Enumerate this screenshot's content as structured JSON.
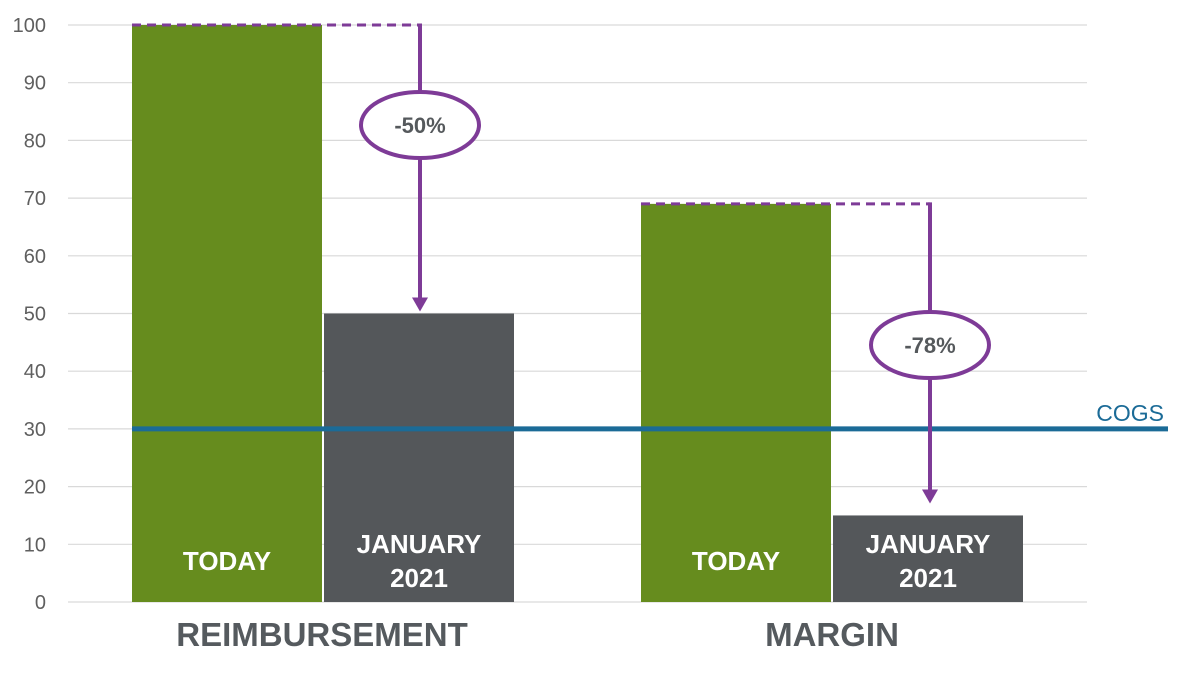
{
  "colors": {
    "today": "#668c1e",
    "january": "#54575a",
    "cogs": "#1b6b97",
    "annotation": "#7e3b97",
    "grid": "#d9d9d9"
  },
  "chart_data": {
    "type": "bar",
    "categories": [
      "REIMBURSEMENT",
      "MARGIN"
    ],
    "series": [
      {
        "name": "TODAY",
        "label_lines": [
          "TODAY"
        ],
        "values": [
          100,
          69
        ]
      },
      {
        "name": "JANUARY 2021",
        "label_lines": [
          "JANUARY",
          "2021"
        ],
        "values": [
          50,
          15
        ]
      }
    ],
    "ylim": [
      0,
      100
    ],
    "yticks": [
      "0",
      "10",
      "20",
      "30",
      "40",
      "50",
      "60",
      "70",
      "80",
      "90",
      "100"
    ],
    "grid": true,
    "reference_line": {
      "label": "COGS",
      "value": 30
    },
    "annotations": [
      {
        "category": "REIMBURSEMENT",
        "text": "-50%",
        "from": 100,
        "to": 50
      },
      {
        "category": "MARGIN",
        "text": "-78%",
        "from": 69,
        "to": 15
      }
    ]
  }
}
